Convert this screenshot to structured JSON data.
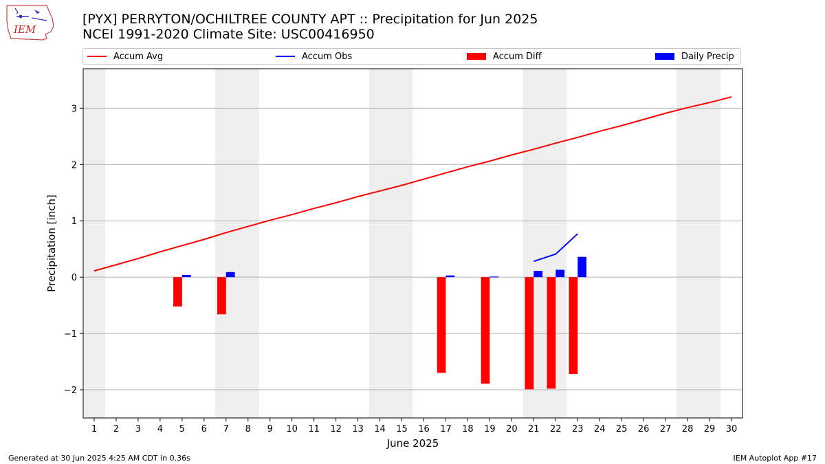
{
  "header": {
    "title_line1": "[PYX] PERRYTON/OCHILTREE COUNTY APT :: Precipitation for Jun 2025",
    "title_line2": "NCEI 1991-2020 Climate Site: USC00416950",
    "logo_text": "IEM"
  },
  "legend": [
    {
      "label": "Accum Avg",
      "kind": "line",
      "color": "#ff0000"
    },
    {
      "label": "Accum Obs",
      "kind": "line",
      "color": "#0000ff"
    },
    {
      "label": "Accum Diff",
      "kind": "bar",
      "color": "#ff0000"
    },
    {
      "label": "Daily Precip",
      "kind": "bar",
      "color": "#0000ff"
    }
  ],
  "footer": {
    "left": "Generated at 30 Jun 2025 4:25 AM CDT in 0.36s",
    "right": "IEM Autoplot App #17"
  },
  "chart_data": {
    "type": "bar",
    "title": "[PYX] PERRYTON/OCHILTREE COUNTY APT :: Precipitation for Jun 2025",
    "subtitle": "NCEI 1991-2020 Climate Site: USC00416950",
    "xlabel": "June 2025",
    "ylabel": "Precipitation [inch]",
    "xlim": [
      0.5,
      30.5
    ],
    "ylim": [
      -2.5,
      3.7
    ],
    "x_ticks": [
      1,
      2,
      3,
      4,
      5,
      6,
      7,
      8,
      9,
      10,
      11,
      12,
      13,
      14,
      15,
      16,
      17,
      18,
      19,
      20,
      21,
      22,
      23,
      24,
      25,
      26,
      27,
      28,
      29,
      30
    ],
    "y_ticks": [
      -2,
      -1,
      0,
      1,
      2,
      3
    ],
    "y_tick_labels": [
      "−2",
      "−1",
      "0",
      "1",
      "2",
      "3"
    ],
    "grid": "horizontal",
    "legend_position": "top",
    "weekend_shading": [
      [
        1,
        1
      ],
      [
        7,
        8
      ],
      [
        14,
        15
      ],
      [
        21,
        22
      ],
      [
        28,
        29
      ]
    ],
    "shading_color": "#eeeeee",
    "x": [
      1,
      2,
      3,
      4,
      5,
      6,
      7,
      8,
      9,
      10,
      11,
      12,
      13,
      14,
      15,
      16,
      17,
      18,
      19,
      20,
      21,
      22,
      23,
      24,
      25,
      26,
      27,
      28,
      29,
      30
    ],
    "series": [
      {
        "name": "Accum Avg",
        "kind": "line",
        "color": "#ff0000",
        "values": [
          0.11,
          0.22,
          0.33,
          0.45,
          0.56,
          0.67,
          0.79,
          0.9,
          1.01,
          1.11,
          1.22,
          1.32,
          1.43,
          1.53,
          1.63,
          1.74,
          1.85,
          1.96,
          2.06,
          2.17,
          2.27,
          2.38,
          2.48,
          2.59,
          2.69,
          2.8,
          2.91,
          3.01,
          3.1,
          3.2
        ]
      },
      {
        "name": "Accum Obs",
        "kind": "line",
        "color": "#0000ff",
        "x": [
          21,
          22,
          23
        ],
        "values": [
          0.28,
          0.41,
          0.77
        ]
      },
      {
        "name": "Accum Diff",
        "kind": "bar",
        "color": "#ff0000",
        "x": [
          5,
          7,
          17,
          19,
          21,
          22,
          23
        ],
        "values": [
          -0.52,
          -0.66,
          -1.7,
          -1.89,
          -1.99,
          -1.98,
          -1.72
        ]
      },
      {
        "name": "Daily Precip",
        "kind": "bar",
        "color": "#0000ff",
        "x": [
          5,
          7,
          17,
          19,
          21,
          22,
          23
        ],
        "values": [
          0.04,
          0.09,
          0.03,
          0.01,
          0.11,
          0.13,
          0.36
        ]
      }
    ]
  }
}
